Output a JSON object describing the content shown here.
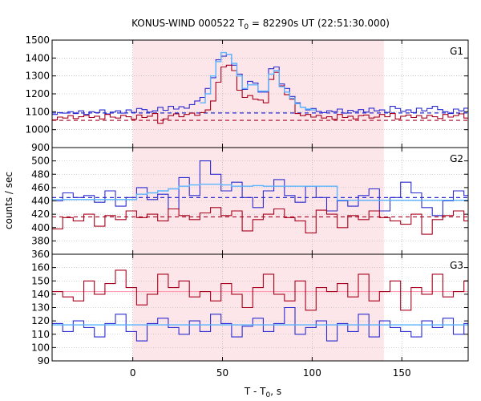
{
  "chart_data": {
    "type": "line",
    "title": "KONUS-WIND 000522 T",
    "title_sub": "0",
    "title_rest": " = 82290s UT (22:51:30.000)",
    "xlabel": "T - T",
    "xlabel_sub": "0",
    "xlabel_rest": ", s",
    "ylabel": "counts / sec",
    "xlim": [
      -45,
      187
    ],
    "x_ticks": [
      0,
      50,
      100,
      150
    ],
    "shaded_interval": [
      0,
      140
    ],
    "grid": true,
    "colors": {
      "blue": "#2a2ad0",
      "red": "#a8001c",
      "light_blue": "#5ab4ff",
      "pink_line": "#ff9ab0",
      "shade": "#fde6ea"
    },
    "panels": [
      {
        "label": "G1",
        "ylim": [
          900,
          1500
        ],
        "y_ticks": [
          900,
          1000,
          1100,
          1200,
          1300,
          1400,
          1500
        ],
        "bin_start": -45,
        "bin_width": 2.944,
        "series": [
          {
            "color_key": "blue",
            "values": [
              1085,
              1095,
              1092,
              1100,
              1090,
              1105,
              1085,
              1100,
              1095,
              1110,
              1088,
              1098,
              1105,
              1092,
              1110,
              1096,
              1118,
              1112,
              1098,
              1105,
              1125,
              1108,
              1130,
              1115,
              1128,
              1120,
              1140,
              1160,
              1180,
              1230,
              1290,
              1390,
              1410,
              1420,
              1360,
              1310,
              1225,
              1270,
              1260,
              1210,
              1210,
              1340,
              1350,
              1255,
              1230,
              1185,
              1150,
              1125,
              1110,
              1118,
              1102,
              1095,
              1105,
              1100,
              1115,
              1092,
              1108,
              1100,
              1112,
              1098,
              1120,
              1105,
              1110,
              1096,
              1130,
              1118,
              1102,
              1110,
              1095,
              1120,
              1105,
              1118,
              1130,
              1112,
              1100,
              1090,
              1115,
              1105,
              1120,
              1098,
              1110,
              1106,
              1112,
              1098,
              1090,
              1102,
              1110,
              1120,
              1100,
              1085,
              1095,
              1105,
              1092,
              1110,
              1100,
              1115,
              1096,
              1108,
              1090,
              1112,
              1100,
              1098,
              1105,
              1090,
              1110,
              1102,
              1118,
              1098,
              1090,
              1105,
              1095,
              1110,
              1100,
              1108,
              1092,
              1100,
              1115,
              1096,
              1120,
              1105,
              1112
            ]
          },
          {
            "color_key": "red",
            "values": [
              1055,
              1070,
              1065,
              1078,
              1062,
              1072,
              1080,
              1068,
              1075,
              1060,
              1085,
              1070,
              1065,
              1080,
              1072,
              1058,
              1082,
              1068,
              1075,
              1090,
              1035,
              1060,
              1078,
              1088,
              1072,
              1085,
              1092,
              1080,
              1095,
              1110,
              1160,
              1265,
              1350,
              1360,
              1330,
              1220,
              1180,
              1190,
              1170,
              1165,
              1150,
              1280,
              1320,
              1245,
              1195,
              1170,
              1090,
              1078,
              1085,
              1070,
              1080,
              1065,
              1072,
              1058,
              1085,
              1068,
              1075,
              1060,
              1078,
              1082,
              1065,
              1070,
              1085,
              1072,
              1090,
              1060,
              1075,
              1082,
              1068,
              1078,
              1065,
              1080,
              1072,
              1062,
              1085,
              1070,
              1078,
              1088,
              1065,
              1075,
              1082,
              1060,
              1072,
              1090,
              1065,
              1080,
              1068,
              1078,
              1060,
              1075,
              1085,
              1070,
              1062,
              1080,
              1072,
              1058,
              1078,
              1068,
              1085,
              1065,
              1072,
              1058,
              1080,
              1070,
              1065,
              1078,
              1085,
              1060,
              1072,
              1082,
              1068,
              1075,
              1080,
              1062,
              1070,
              1078,
              1085,
              1065,
              1072,
              1080,
              1068
            ]
          },
          {
            "color_key": "light_blue",
            "values": [
              null,
              null,
              null,
              null,
              null,
              null,
              null,
              null,
              null,
              null,
              null,
              null,
              null,
              null,
              null,
              null,
              null,
              null,
              null,
              null,
              null,
              null,
              null,
              null,
              null,
              null,
              null,
              null,
              1150,
              1200,
              1300,
              1380,
              1430,
              1420,
              1370,
              1300,
              1230,
              1250,
              1250,
              1215,
              1215,
              1310,
              1330,
              1240,
              1210,
              1175,
              1145,
              1125,
              1115,
              1110,
              null,
              null,
              null,
              null,
              null,
              null,
              null,
              null,
              null,
              null,
              null,
              null,
              null,
              null,
              null,
              null,
              null,
              null,
              null,
              null,
              null,
              null,
              null,
              null,
              null,
              null,
              null,
              null,
              null,
              null,
              null,
              null,
              null,
              null,
              null,
              null,
              null,
              null,
              null,
              null,
              null,
              null,
              null,
              null,
              null,
              null,
              null,
              null,
              null,
              null,
              null,
              null,
              null,
              null,
              null,
              null,
              null,
              null,
              null,
              null,
              null,
              null,
              null,
              null,
              null,
              null,
              null,
              null,
              null,
              null,
              null,
              null,
              null,
              null
            ]
          }
        ],
        "baselines": [
          {
            "color_key": "blue",
            "value": 1093,
            "style": "dashed"
          },
          {
            "color_key": "red",
            "value": 1052,
            "style": "dashed"
          }
        ]
      },
      {
        "label": "G2",
        "ylim": [
          360,
          520
        ],
        "y_ticks": [
          360,
          380,
          400,
          420,
          440,
          460,
          480,
          500
        ],
        "bin_start": -45,
        "bin_width": 5.888,
        "series": [
          {
            "color_key": "blue",
            "values": [
              440,
              452,
              445,
              448,
              438,
              455,
              432,
              445,
              460,
              442,
              450,
              428,
              475,
              448,
              500,
              480,
              455,
              468,
              445,
              430,
              455,
              472,
              448,
              438,
              462,
              445,
              425,
              440,
              432,
              448,
              458,
              425,
              445,
              468,
              452,
              430,
              418,
              440,
              455,
              448,
              462,
              435,
              450,
              425,
              442,
              470,
              438,
              455,
              460,
              440,
              445,
              432,
              450,
              470,
              448,
              442,
              436,
              465,
              445,
              450,
              438,
              455
            ]
          },
          {
            "color_key": "red",
            "values": [
              398,
              415,
              410,
              420,
              402,
              418,
              412,
              425,
              415,
              420,
              410,
              428,
              418,
              412,
              422,
              430,
              418,
              425,
              395,
              412,
              420,
              428,
              415,
              410,
              392,
              426,
              420,
              400,
              418,
              412,
              425,
              415,
              410,
              405,
              420,
              390,
              412,
              418,
              425,
              410,
              415,
              400,
              412,
              420,
              408,
              395,
              418,
              412,
              425,
              420,
              410,
              405,
              415,
              402,
              418,
              420,
              410,
              412,
              416,
              405,
              420,
              415
            ]
          },
          {
            "color_key": "light_blue",
            "values": [
              442,
              442,
              442,
              442,
              442,
              442,
              442,
              442,
              450,
              452,
              455,
              458,
              462,
              464,
              465,
              465,
              464,
              462,
              462,
              463,
              462,
              462,
              462,
              462,
              462,
              462,
              462,
              441,
              441,
              441,
              441,
              441,
              441,
              441,
              441,
              441,
              441,
              441,
              441,
              441,
              441,
              441,
              441,
              441,
              441,
              441,
              441,
              441,
              441,
              441,
              441,
              441,
              441,
              441,
              441,
              441,
              441,
              441,
              441,
              441,
              441,
              441
            ]
          }
        ],
        "baselines": [
          {
            "color_key": "blue",
            "value": 445,
            "style": "dashed"
          },
          {
            "color_key": "red",
            "value": 416,
            "style": "dashed"
          }
        ]
      },
      {
        "label": "G3",
        "ylim": [
          90,
          170
        ],
        "y_ticks": [
          90,
          100,
          110,
          120,
          130,
          140,
          150,
          160
        ],
        "bin_start": -45,
        "bin_width": 5.888,
        "series": [
          {
            "color_key": "red",
            "values": [
              142,
              138,
              135,
              150,
              140,
              148,
              158,
              145,
              132,
              140,
              155,
              145,
              150,
              138,
              142,
              135,
              148,
              140,
              130,
              145,
              155,
              140,
              135,
              150,
              128,
              145,
              142,
              148,
              138,
              155,
              135,
              142,
              150,
              128,
              145,
              140,
              155,
              138,
              142,
              150,
              135,
              148,
              140,
              153,
              135,
              145,
              150,
              140,
              132,
              145,
              140,
              135,
              148,
              138,
              128,
              142,
              155,
              150,
              140,
              145,
              135,
              142
            ]
          },
          {
            "color_key": "blue",
            "values": [
              118,
              112,
              120,
              115,
              108,
              118,
              125,
              112,
              105,
              118,
              122,
              115,
              110,
              120,
              112,
              125,
              118,
              108,
              116,
              122,
              112,
              118,
              130,
              110,
              115,
              120,
              105,
              118,
              112,
              125,
              108,
              120,
              115,
              112,
              108,
              120,
              115,
              122,
              110,
              118,
              112,
              125,
              115,
              118,
              108,
              120,
              112,
              116,
              122,
              110,
              118,
              115,
              105,
              120,
              112,
              118,
              108,
              115,
              122,
              118,
              112,
              116
            ]
          },
          {
            "color_key": "light_blue",
            "values": [
              117,
              117,
              117,
              117,
              117,
              117,
              117,
              117,
              117,
              117,
              117,
              117,
              117,
              117,
              117,
              117,
              117,
              117,
              117,
              117,
              117,
              117,
              117,
              117,
              117,
              117,
              117,
              117,
              117,
              117,
              117,
              117,
              117,
              117,
              117,
              117,
              117,
              117,
              117,
              117,
              117,
              117,
              117,
              117,
              117,
              117,
              117,
              117,
              117,
              117,
              117,
              117,
              117,
              117,
              117,
              117,
              117,
              117,
              117,
              117,
              117,
              117
            ]
          }
        ],
        "baselines": [
          {
            "color_key": "pink_line",
            "value": 142,
            "style": "solid"
          }
        ]
      }
    ]
  }
}
